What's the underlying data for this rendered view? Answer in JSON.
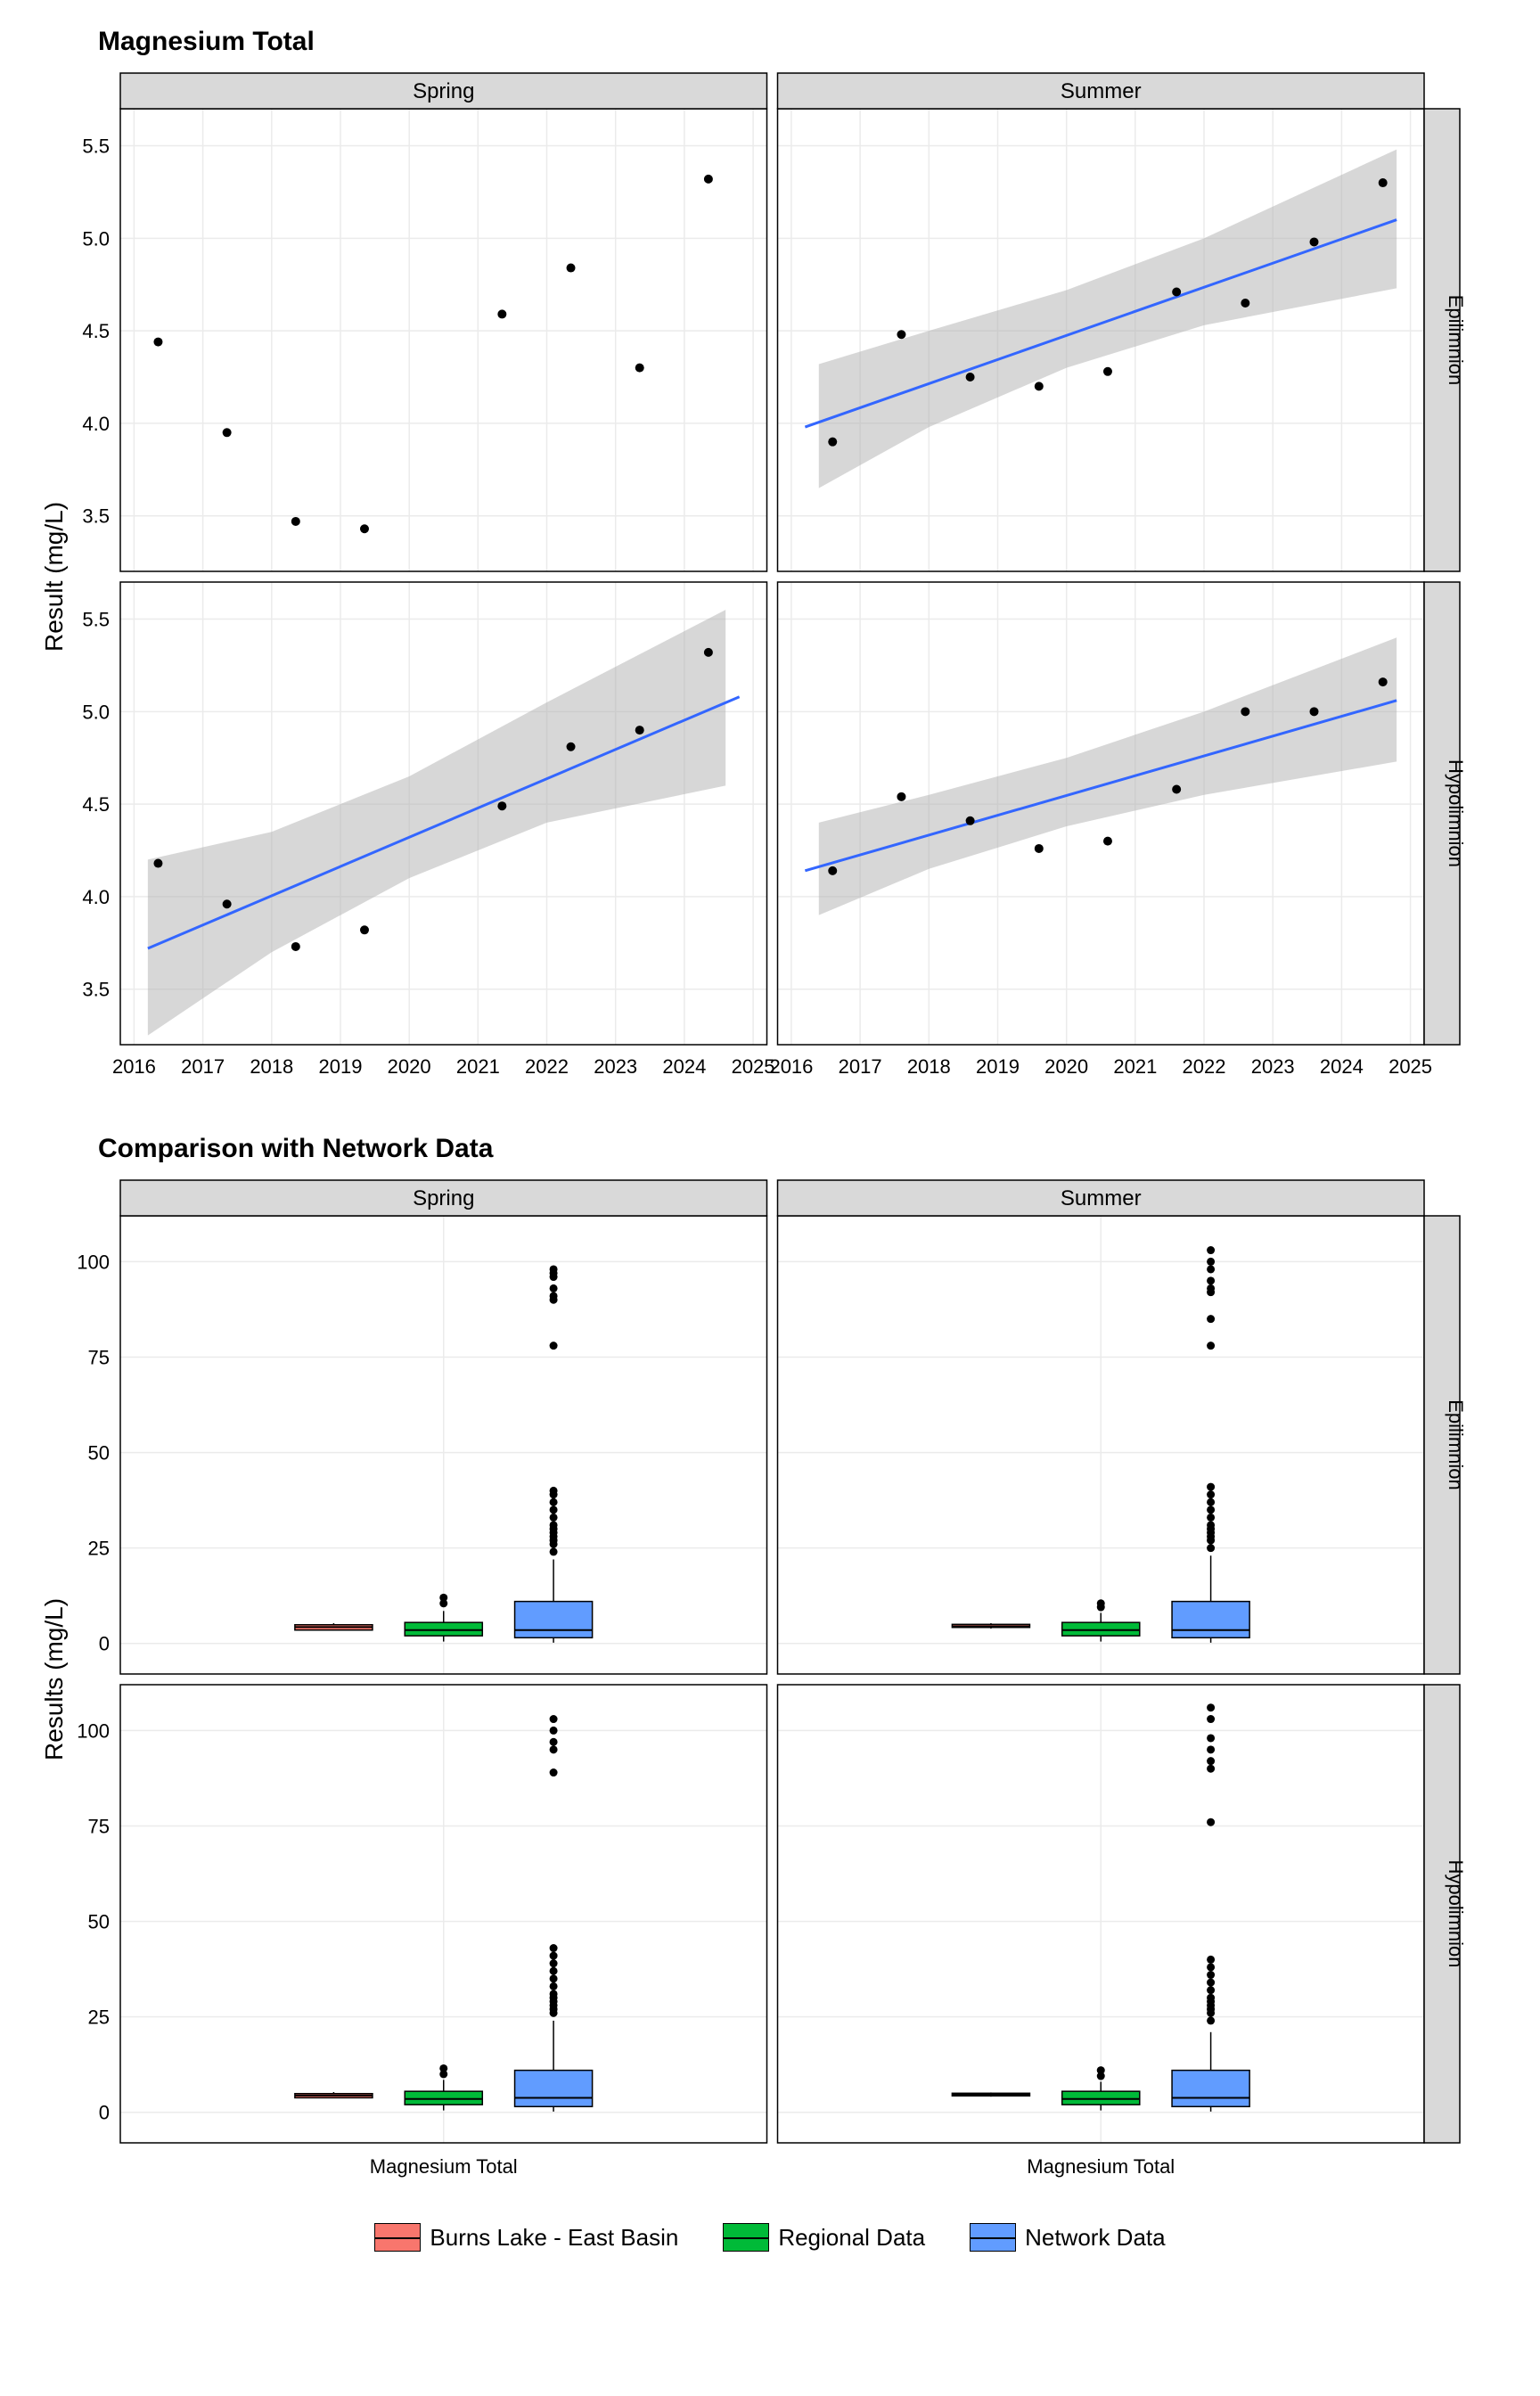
{
  "scatter": {
    "title": "Magnesium Total",
    "ylabel": "Result (mg/L)",
    "facet_cols": [
      "Spring",
      "Summer"
    ],
    "facet_rows": [
      "Epilimnion",
      "Hypolimnion"
    ],
    "x_ticks": [
      2016,
      2017,
      2018,
      2019,
      2020,
      2021,
      2022,
      2023,
      2024,
      2025
    ],
    "y_ticks": [
      3.5,
      4.0,
      4.5,
      5.0,
      5.5
    ],
    "xlim": [
      2015.8,
      2025.2
    ],
    "ylim": [
      3.2,
      5.7
    ],
    "point_color": "#000000",
    "point_radius": 5,
    "line_color": "#3366ff",
    "line_width": 3,
    "ribbon_color": "#b0b0b0",
    "ribbon_opacity": 0.5,
    "grid_color": "#ebebeb",
    "panel_bg": "#ffffff",
    "strip_bg": "#d9d9d9",
    "strip_border": "#000000",
    "panels": {
      "spring_epi": {
        "show_line": false,
        "points": [
          [
            2016.35,
            4.44
          ],
          [
            2017.35,
            3.95
          ],
          [
            2018.35,
            3.47
          ],
          [
            2019.35,
            3.43
          ],
          [
            2021.35,
            4.59
          ],
          [
            2022.35,
            4.84
          ],
          [
            2023.35,
            4.3
          ],
          [
            2024.35,
            5.32
          ]
        ]
      },
      "summer_epi": {
        "show_line": true,
        "points": [
          [
            2016.6,
            3.9
          ],
          [
            2017.6,
            4.48
          ],
          [
            2018.6,
            4.25
          ],
          [
            2019.6,
            4.2
          ],
          [
            2020.6,
            4.28
          ],
          [
            2021.6,
            4.71
          ],
          [
            2022.6,
            4.65
          ],
          [
            2023.6,
            4.98
          ],
          [
            2024.6,
            5.3
          ]
        ],
        "line": {
          "y0": 3.98,
          "y1": 5.1
        },
        "ribbon": [
          [
            2016.4,
            3.65,
            4.32
          ],
          [
            2018,
            3.98,
            4.5
          ],
          [
            2020,
            4.3,
            4.72
          ],
          [
            2022,
            4.53,
            5.0
          ],
          [
            2024.8,
            4.73,
            5.48
          ]
        ]
      },
      "spring_hypo": {
        "show_line": true,
        "points": [
          [
            2016.35,
            4.18
          ],
          [
            2017.35,
            3.96
          ],
          [
            2018.35,
            3.73
          ],
          [
            2019.35,
            3.82
          ],
          [
            2021.35,
            4.49
          ],
          [
            2022.35,
            4.81
          ],
          [
            2023.35,
            4.9
          ],
          [
            2024.35,
            5.32
          ]
        ],
        "line": {
          "y0": 3.72,
          "y1": 5.08
        },
        "ribbon": [
          [
            2016.2,
            3.25,
            4.2
          ],
          [
            2018,
            3.7,
            4.35
          ],
          [
            2020,
            4.1,
            4.65
          ],
          [
            2022,
            4.4,
            5.05
          ],
          [
            2024.6,
            4.6,
            5.55
          ]
        ]
      },
      "summer_hypo": {
        "show_line": true,
        "points": [
          [
            2016.6,
            4.14
          ],
          [
            2017.6,
            4.54
          ],
          [
            2018.6,
            4.41
          ],
          [
            2019.6,
            4.26
          ],
          [
            2020.6,
            4.3
          ],
          [
            2021.6,
            4.58
          ],
          [
            2022.6,
            5.0
          ],
          [
            2023.6,
            5.0
          ],
          [
            2024.6,
            5.16
          ]
        ],
        "line": {
          "y0": 4.14,
          "y1": 5.06
        },
        "ribbon": [
          [
            2016.4,
            3.9,
            4.4
          ],
          [
            2018,
            4.15,
            4.55
          ],
          [
            2020,
            4.38,
            4.75
          ],
          [
            2022,
            4.55,
            5.0
          ],
          [
            2024.8,
            4.73,
            5.4
          ]
        ]
      }
    }
  },
  "boxplot": {
    "title": "Comparison with Network Data",
    "ylabel": "Results (mg/L)",
    "facet_cols": [
      "Spring",
      "Summer"
    ],
    "facet_rows": [
      "Epilimnion",
      "Hypolimnion"
    ],
    "x_label": "Magnesium Total",
    "y_ticks": [
      0,
      25,
      50,
      75,
      100
    ],
    "ylim": [
      -8,
      112
    ],
    "grid_color": "#ebebeb",
    "panel_bg": "#ffffff",
    "strip_bg": "#d9d9d9",
    "series": [
      {
        "name": "Burns Lake - East Basin",
        "color": "#f8766d"
      },
      {
        "name": "Regional Data",
        "color": "#00ba38"
      },
      {
        "name": "Network Data",
        "color": "#619cff"
      }
    ],
    "panels": {
      "spring_epi": {
        "boxes": [
          {
            "q1": 3.5,
            "med": 4.3,
            "q3": 4.9,
            "wl": 3.4,
            "wh": 5.3,
            "out": []
          },
          {
            "q1": 2.0,
            "med": 3.5,
            "q3": 5.5,
            "wl": 0.5,
            "wh": 8.5,
            "out": [
              10.5,
              12
            ]
          },
          {
            "q1": 1.5,
            "med": 3.5,
            "q3": 11,
            "wl": 0.2,
            "wh": 22,
            "out": [
              24,
              26,
              27,
              28,
              29,
              30,
              31,
              33,
              35,
              37,
              39,
              40,
              78,
              90,
              91,
              93,
              96,
              97,
              98
            ]
          }
        ]
      },
      "summer_epi": {
        "boxes": [
          {
            "q1": 4.2,
            "med": 4.5,
            "q3": 5.0,
            "wl": 3.9,
            "wh": 5.3,
            "out": []
          },
          {
            "q1": 2.0,
            "med": 3.5,
            "q3": 5.5,
            "wl": 0.5,
            "wh": 8.0,
            "out": [
              9.5,
              10.5
            ]
          },
          {
            "q1": 1.5,
            "med": 3.5,
            "q3": 11,
            "wl": 0.2,
            "wh": 23,
            "out": [
              25,
              27,
              28,
              29,
              30,
              31,
              33,
              35,
              37,
              39,
              41,
              78,
              85,
              92,
              93,
              95,
              98,
              100,
              103
            ]
          }
        ]
      },
      "spring_hypo": {
        "boxes": [
          {
            "q1": 3.8,
            "med": 4.4,
            "q3": 4.9,
            "wl": 3.7,
            "wh": 5.3,
            "out": []
          },
          {
            "q1": 2.0,
            "med": 3.5,
            "q3": 5.5,
            "wl": 0.5,
            "wh": 8.5,
            "out": [
              10,
              11.5
            ]
          },
          {
            "q1": 1.5,
            "med": 3.8,
            "q3": 11,
            "wl": 0.2,
            "wh": 24,
            "out": [
              26,
              27,
              28,
              29,
              30,
              31,
              33,
              35,
              37,
              39,
              41,
              43,
              89,
              95,
              97,
              100,
              103
            ]
          }
        ]
      },
      "summer_hypo": {
        "boxes": [
          {
            "q1": 4.3,
            "med": 4.6,
            "q3": 5.0,
            "wl": 4.1,
            "wh": 5.2,
            "out": []
          },
          {
            "q1": 2.0,
            "med": 3.5,
            "q3": 5.5,
            "wl": 0.5,
            "wh": 8.0,
            "out": [
              9.5,
              11
            ]
          },
          {
            "q1": 1.5,
            "med": 3.8,
            "q3": 11,
            "wl": 0.2,
            "wh": 21,
            "out": [
              24,
              26,
              27,
              28,
              29,
              30,
              32,
              34,
              36,
              38,
              40,
              76,
              90,
              92,
              95,
              98,
              103,
              106
            ]
          }
        ]
      }
    }
  }
}
